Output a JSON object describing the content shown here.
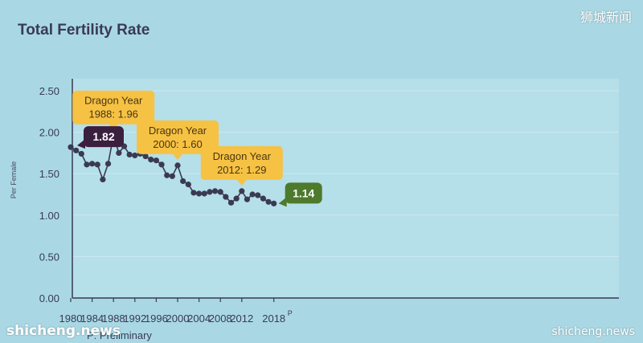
{
  "watermarks": {
    "top_right": "狮城新闻",
    "bottom_left": "shicheng.news",
    "bottom_right": "shicheng.news"
  },
  "colors": {
    "background": "#a9d8e4",
    "plot_background": "#b5dfe9",
    "line": "#3a3a52",
    "callout_gold": "#f6c244",
    "start_badge": "#3b1f3f",
    "end_badge": "#4e7a2c",
    "title": "#3a3a55"
  },
  "chart_data": {
    "type": "line",
    "title": "Total Fertility Rate",
    "ylabel": "Per Female",
    "xlabel": "",
    "ylim": [
      0,
      2.5
    ],
    "xlim": [
      1980,
      2018
    ],
    "grid": true,
    "yticks": [
      "0.00",
      "0.50",
      "1.00",
      "1.50",
      "2.00",
      "2.50"
    ],
    "xticks": [
      "1980",
      "1984",
      "1988",
      "1992",
      "1996",
      "2000",
      "2004",
      "2008",
      "2012"
    ],
    "last_tick": {
      "label": "2018",
      "superscript": "P"
    },
    "footnote": "P: Preliminary",
    "x": [
      1980,
      1981,
      1982,
      1983,
      1984,
      1985,
      1986,
      1987,
      1988,
      1989,
      1990,
      1991,
      1992,
      1993,
      1994,
      1995,
      1996,
      1997,
      1998,
      1999,
      2000,
      2001,
      2002,
      2003,
      2004,
      2005,
      2006,
      2007,
      2008,
      2009,
      2010,
      2011,
      2012,
      2013,
      2014,
      2015,
      2016,
      2017,
      2018
    ],
    "values": [
      1.82,
      1.78,
      1.74,
      1.61,
      1.62,
      1.61,
      1.43,
      1.62,
      1.96,
      1.75,
      1.83,
      1.73,
      1.72,
      1.74,
      1.71,
      1.67,
      1.66,
      1.61,
      1.48,
      1.47,
      1.6,
      1.41,
      1.37,
      1.27,
      1.26,
      1.26,
      1.28,
      1.29,
      1.28,
      1.22,
      1.15,
      1.2,
      1.29,
      1.19,
      1.25,
      1.24,
      1.2,
      1.16,
      1.14
    ],
    "annotations": [
      {
        "x": 1988,
        "y": 1.96,
        "line1": "Dragon Year",
        "line2": "1988: 1.96"
      },
      {
        "x": 2000,
        "y": 1.6,
        "line1": "Dragon Year",
        "line2": "2000: 1.60"
      },
      {
        "x": 2012,
        "y": 1.29,
        "line1": "Dragon Year",
        "line2": "2012: 1.29"
      }
    ],
    "start_label": {
      "x": 1980,
      "y": 1.82,
      "text": "1.82"
    },
    "end_label": {
      "x": 2018,
      "y": 1.14,
      "text": "1.14"
    }
  }
}
